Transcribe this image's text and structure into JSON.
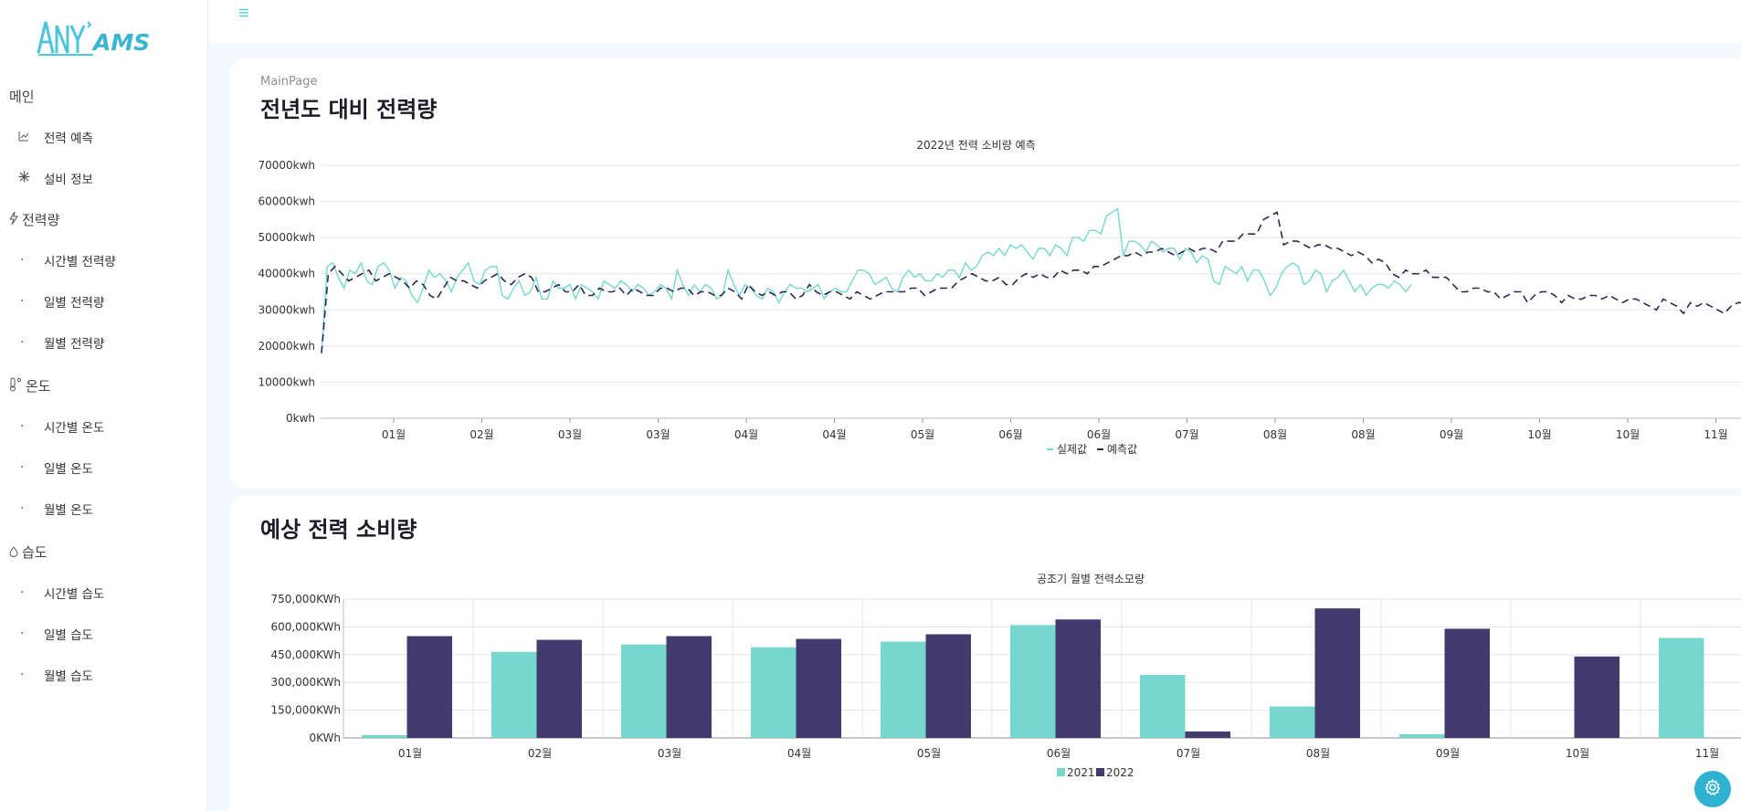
{
  "brand": {
    "logo_text_1": "ANY",
    "logo_text_2": "AMS"
  },
  "sidebar": {
    "sections": [
      {
        "label": "메인",
        "icon": "",
        "items": [
          {
            "label": "전력 예측",
            "icon": "chart-line-icon"
          },
          {
            "label": "설비 정보",
            "icon": "snowflake-icon"
          }
        ]
      },
      {
        "label": "전력량",
        "icon": "lightning-icon",
        "items": [
          {
            "label": "시간별 전력량"
          },
          {
            "label": "일별 전력량"
          },
          {
            "label": "월별 전력량"
          }
        ]
      },
      {
        "label": "온도",
        "icon": "thermometer-icon",
        "items": [
          {
            "label": "시간별 온도"
          },
          {
            "label": "일별 온도"
          },
          {
            "label": "월별 온도"
          }
        ]
      },
      {
        "label": "습도",
        "icon": "droplet-icon",
        "items": [
          {
            "label": "시간별 습도"
          },
          {
            "label": "일별 습도"
          },
          {
            "label": "월별 습도"
          }
        ]
      }
    ]
  },
  "header": {
    "menu_icon": "hamburger-icon"
  },
  "main": {
    "breadcrumb": "MainPage",
    "title": "전년도 대비 전력량",
    "section2_title": "예상 전력 소비량"
  },
  "colors": {
    "teal": "#76d7cf",
    "navy": "#3f386b",
    "accent": "#2fb2d0"
  },
  "chart_data": [
    {
      "type": "line",
      "title": "2022년 전력 소비량 예측",
      "y_ticks": [
        "70000kwh",
        "60000kwh",
        "50000kwh",
        "40000kwh",
        "30000kwh",
        "20000kwh",
        "10000kwh",
        "0kwh"
      ],
      "ylim": [
        0,
        70000
      ],
      "x_ticks": [
        "01월",
        "02월",
        "03월",
        "03월",
        "04월",
        "04월",
        "05월",
        "06월",
        "06월",
        "07월",
        "08월",
        "08월",
        "09월",
        "10월",
        "10월",
        "11월"
      ],
      "legend": [
        "실제값",
        "예측값"
      ],
      "legend_position": "bottom",
      "grid": true,
      "series": [
        {
          "name": "실제값",
          "color": "#76d7cf",
          "style": "solid",
          "values": [
            18000,
            42000,
            43000,
            39000,
            36000,
            41000,
            40000,
            43000,
            38000,
            37000,
            42000,
            43000,
            41000,
            36000,
            39000,
            38000,
            34000,
            32000,
            36000,
            41000,
            39000,
            40000,
            38000,
            35000,
            39000,
            41000,
            43000,
            38000,
            37000,
            41000,
            42000,
            42000,
            34000,
            33000,
            36000,
            38000,
            34000,
            35000,
            39000,
            33000,
            33000,
            38000,
            36000,
            36000,
            37000,
            33000,
            37000,
            36000,
            35000,
            33000,
            38000,
            37000,
            36000,
            38000,
            37000,
            35000,
            37000,
            36000,
            34000,
            35000,
            37000,
            36000,
            33000,
            41000,
            37000,
            34000,
            37000,
            35000,
            37000,
            36000,
            33000,
            34000,
            41000,
            37000,
            34000,
            37000,
            36000,
            34000,
            33000,
            36000,
            35000,
            32000,
            35000,
            37000,
            36000,
            36000,
            35000,
            36000,
            37000,
            33000,
            35000,
            36000,
            35000,
            35000,
            38000,
            41000,
            41000,
            40000,
            37000,
            38000,
            39000,
            36000,
            35000,
            39000,
            41000,
            39000,
            40000,
            38000,
            38000,
            40000,
            39000,
            41000,
            41000,
            39000,
            43000,
            41000,
            42000,
            45000,
            46000,
            45000,
            47000,
            45000,
            48000,
            47000,
            48000,
            46000,
            44000,
            47000,
            47000,
            45000,
            48000,
            47000,
            45000,
            50000,
            50000,
            49000,
            52000,
            52000,
            51000,
            56000,
            57000,
            58000,
            45000,
            49000,
            49000,
            48000,
            46000,
            49000,
            48000,
            46000,
            47000,
            47000,
            44000,
            47000,
            46000,
            43000,
            45000,
            44000,
            38000,
            37000,
            42000,
            41000,
            40000,
            42000,
            38000,
            41000,
            41000,
            38000,
            34000,
            36000,
            40000,
            42000,
            43000,
            42000,
            37000,
            38000,
            41000,
            40000,
            35000,
            38000,
            39000,
            41000,
            38000,
            35000,
            37000,
            34000,
            36000,
            37000,
            37000,
            36000,
            38000,
            37000,
            35000,
            37000
          ],
          "x_end_fraction": 0.86
        },
        {
          "name": "예측값",
          "color": "#2b2a56",
          "style": "dashed",
          "values": [
            18000,
            40000,
            42000,
            40000,
            38000,
            39000,
            40000,
            41000,
            38000,
            39000,
            40000,
            39000,
            38000,
            36000,
            38000,
            37000,
            34000,
            33000,
            36000,
            39000,
            38000,
            38000,
            37000,
            36000,
            38000,
            39000,
            40000,
            38000,
            37000,
            39000,
            40000,
            39000,
            35000,
            35000,
            36000,
            37000,
            35000,
            35000,
            37000,
            34000,
            34000,
            36000,
            35000,
            35000,
            36000,
            34000,
            36000,
            35000,
            34000,
            34000,
            36000,
            36000,
            35000,
            36000,
            36000,
            34000,
            35000,
            35000,
            34000,
            34000,
            36000,
            35000,
            33000,
            37000,
            35000,
            34000,
            35000,
            34000,
            35000,
            35000,
            33000,
            34000,
            37000,
            35000,
            34000,
            35000,
            35000,
            34000,
            33000,
            35000,
            34000,
            33000,
            34000,
            35000,
            35000,
            35000,
            35000,
            36000,
            36000,
            34000,
            35000,
            36000,
            36000,
            36000,
            38000,
            39000,
            40000,
            39000,
            38000,
            38000,
            39000,
            37000,
            37000,
            39000,
            40000,
            39000,
            40000,
            39000,
            39000,
            41000,
            40000,
            41000,
            41000,
            40000,
            42000,
            42000,
            43000,
            44000,
            45000,
            45000,
            46000,
            45000,
            46000,
            46000,
            47000,
            46000,
            45000,
            46000,
            47000,
            46000,
            47000,
            47000,
            46000,
            49000,
            49000,
            49000,
            51000,
            51000,
            51000,
            55000,
            56000,
            57000,
            48000,
            49000,
            49000,
            48000,
            47000,
            48000,
            48000,
            47000,
            47000,
            46000,
            45000,
            46000,
            45000,
            43000,
            44000,
            43000,
            40000,
            39000,
            41000,
            40000,
            40000,
            41000,
            39000,
            39000,
            39000,
            37000,
            35000,
            35000,
            36000,
            36000,
            35000,
            35000,
            33000,
            34000,
            35000,
            35000,
            32000,
            34000,
            35000,
            35000,
            34000,
            32000,
            34000,
            33000,
            33000,
            34000,
            34000,
            33000,
            34000,
            33000,
            32000,
            33000,
            33000,
            32000,
            31000,
            30000,
            33000,
            32000,
            31000,
            29000,
            32000,
            31000,
            32000,
            31000,
            30000,
            29000,
            31000,
            32000,
            32000,
            31000,
            30000,
            32000,
            32000,
            31000
          ]
        }
      ]
    },
    {
      "type": "bar",
      "title": "공조기 월별 전력소모량",
      "categories": [
        "01월",
        "02월",
        "03월",
        "04월",
        "05월",
        "06월",
        "07월",
        "08월",
        "09월",
        "10월",
        "11월"
      ],
      "y_ticks": [
        "750,000KWh",
        "600,000KWh",
        "450,000KWh",
        "300,000KWh",
        "150,000KWh",
        "0KWh"
      ],
      "ylim": [
        0,
        750000
      ],
      "legend": [
        "2021",
        "2022"
      ],
      "legend_position": "bottom",
      "series": [
        {
          "name": "2021",
          "color": "#76d7cf",
          "values": [
            15000,
            465000,
            505000,
            490000,
            520000,
            610000,
            340000,
            170000,
            20000,
            0,
            540000
          ]
        },
        {
          "name": "2022",
          "color": "#433a6e",
          "values": [
            550000,
            530000,
            550000,
            535000,
            560000,
            640000,
            35000,
            700000,
            590000,
            440000,
            null
          ]
        }
      ]
    }
  ]
}
